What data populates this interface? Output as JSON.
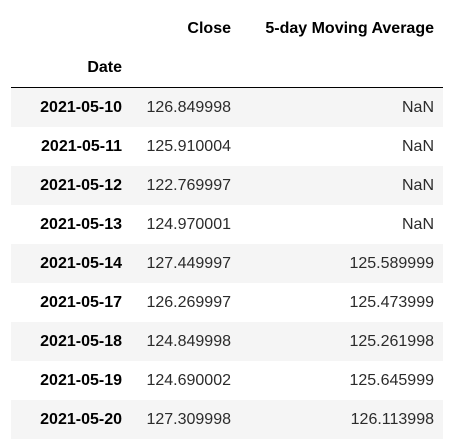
{
  "dataframe": {
    "columns": [
      "Close",
      "5-day Moving Average"
    ],
    "index_name": "Date",
    "rows": [
      {
        "date": "2021-05-10",
        "close": "126.849998",
        "ma5": "NaN"
      },
      {
        "date": "2021-05-11",
        "close": "125.910004",
        "ma5": "NaN"
      },
      {
        "date": "2021-05-12",
        "close": "122.769997",
        "ma5": "NaN"
      },
      {
        "date": "2021-05-13",
        "close": "124.970001",
        "ma5": "NaN"
      },
      {
        "date": "2021-05-14",
        "close": "127.449997",
        "ma5": "125.589999"
      },
      {
        "date": "2021-05-17",
        "close": "126.269997",
        "ma5": "125.473999"
      },
      {
        "date": "2021-05-18",
        "close": "124.849998",
        "ma5": "125.261998"
      },
      {
        "date": "2021-05-19",
        "close": "124.690002",
        "ma5": "125.645999"
      },
      {
        "date": "2021-05-20",
        "close": "127.309998",
        "ma5": "126.113998"
      }
    ]
  },
  "colors": {
    "background": "#ffffff",
    "stripe": "#f5f5f5",
    "header_rule": "#000000",
    "text": "#000000",
    "cell_text": "#2b2b2b"
  }
}
